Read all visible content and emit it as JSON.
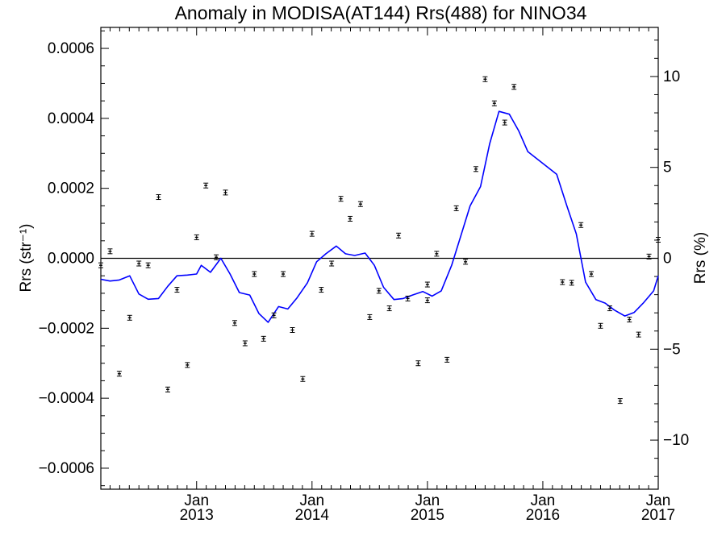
{
  "chart_data": {
    "type": "scatter",
    "title": "Anomaly in MODISA(AT144) Rrs(488) for NINO34",
    "ylabel_left": "Rrs (str⁻¹)",
    "ylabel_right": "Rrs (%)",
    "xlim": [
      2012.17,
      2017.0
    ],
    "ylim_left": [
      -0.00066,
      0.00066
    ],
    "ylim_right": [
      -12.7,
      12.7
    ],
    "zero_line": true,
    "x_ticks": [
      {
        "x": 2013.0,
        "month": "Jan",
        "year": "2013"
      },
      {
        "x": 2014.0,
        "month": "Jan",
        "year": "2014"
      },
      {
        "x": 2015.0,
        "month": "Jan",
        "year": "2015"
      },
      {
        "x": 2016.0,
        "month": "Jan",
        "year": "2016"
      },
      {
        "x": 2017.0,
        "month": "Jan",
        "year": "2017"
      }
    ],
    "y_ticks_left": [
      {
        "v": 0.0006,
        "label": "0.0006"
      },
      {
        "v": 0.0004,
        "label": "0.0004"
      },
      {
        "v": 0.0002,
        "label": "0.0002"
      },
      {
        "v": 0.0,
        "label": "0.0000"
      },
      {
        "v": -0.0002,
        "label": "−0.0002"
      },
      {
        "v": -0.0004,
        "label": "−0.0004"
      },
      {
        "v": -0.0006,
        "label": "−0.0006"
      }
    ],
    "y_ticks_right": [
      {
        "v": 10,
        "label": "10"
      },
      {
        "v": 5,
        "label": "5"
      },
      {
        "v": 0,
        "label": "0"
      },
      {
        "v": -5,
        "label": "−5"
      },
      {
        "v": -10,
        "label": "−10"
      }
    ],
    "series": [
      {
        "axis": "left",
        "style": "errorbar-points",
        "color": "#000000",
        "points": [
          {
            "x": 2012.17,
            "y": -2e-05
          },
          {
            "x": 2012.25,
            "y": 2e-05
          },
          {
            "x": 2012.33,
            "y": -0.00033
          },
          {
            "x": 2012.42,
            "y": -0.00017
          },
          {
            "x": 2012.5,
            "y": -1.5e-05
          },
          {
            "x": 2012.58,
            "y": -2e-05
          },
          {
            "x": 2012.67,
            "y": 0.000175
          },
          {
            "x": 2012.75,
            "y": -0.000375
          },
          {
            "x": 2012.83,
            "y": -9e-05
          },
          {
            "x": 2012.92,
            "y": -0.000305
          },
          {
            "x": 2013.0,
            "y": 6e-05
          },
          {
            "x": 2013.08,
            "y": 0.000208
          },
          {
            "x": 2013.17,
            "y": 3e-06
          },
          {
            "x": 2013.25,
            "y": 0.000188
          },
          {
            "x": 2013.33,
            "y": -0.000185
          },
          {
            "x": 2013.42,
            "y": -0.000243
          },
          {
            "x": 2013.5,
            "y": -4.5e-05
          },
          {
            "x": 2013.58,
            "y": -0.00023
          },
          {
            "x": 2013.67,
            "y": -0.000163
          },
          {
            "x": 2013.75,
            "y": -4.5e-05
          },
          {
            "x": 2013.83,
            "y": -0.000205
          },
          {
            "x": 2013.92,
            "y": -0.000345
          },
          {
            "x": 2014.0,
            "y": 7e-05
          },
          {
            "x": 2014.08,
            "y": -9e-05
          },
          {
            "x": 2014.17,
            "y": -1.5e-05
          },
          {
            "x": 2014.25,
            "y": 0.00017
          },
          {
            "x": 2014.33,
            "y": 0.000113
          },
          {
            "x": 2014.42,
            "y": 0.000155
          },
          {
            "x": 2014.5,
            "y": -0.000168
          },
          {
            "x": 2014.58,
            "y": -9.3e-05
          },
          {
            "x": 2014.67,
            "y": -0.000143
          },
          {
            "x": 2014.75,
            "y": 6.5e-05
          },
          {
            "x": 2014.83,
            "y": -0.000115
          },
          {
            "x": 2014.92,
            "y": -0.0003
          },
          {
            "x": 2015.0,
            "y": -7.5e-05
          },
          {
            "x": 2015.0,
            "y": -0.00012
          },
          {
            "x": 2015.08,
            "y": 1.3e-05
          },
          {
            "x": 2015.17,
            "y": -0.00029
          },
          {
            "x": 2015.25,
            "y": 0.000143
          },
          {
            "x": 2015.33,
            "y": -1e-05
          },
          {
            "x": 2015.42,
            "y": 0.000255
          },
          {
            "x": 2015.5,
            "y": 0.000512
          },
          {
            "x": 2015.58,
            "y": 0.000443
          },
          {
            "x": 2015.67,
            "y": 0.000388
          },
          {
            "x": 2015.75,
            "y": 0.00049
          },
          {
            "x": 2016.17,
            "y": -6.8e-05
          },
          {
            "x": 2016.25,
            "y": -7e-05
          },
          {
            "x": 2016.33,
            "y": 9.5e-05
          },
          {
            "x": 2016.42,
            "y": -4.5e-05
          },
          {
            "x": 2016.5,
            "y": -0.000193
          },
          {
            "x": 2016.58,
            "y": -0.000143
          },
          {
            "x": 2016.67,
            "y": -0.000408
          },
          {
            "x": 2016.75,
            "y": -0.000175
          },
          {
            "x": 2016.83,
            "y": -0.000218
          },
          {
            "x": 2016.92,
            "y": 5e-06
          },
          {
            "x": 2017.0,
            "y": 5.3e-05
          }
        ]
      },
      {
        "axis": "left",
        "style": "line",
        "color": "#0000ff",
        "points": [
          {
            "x": 2012.17,
            "y": -6e-05
          },
          {
            "x": 2012.25,
            "y": -6.5e-05
          },
          {
            "x": 2012.33,
            "y": -6.2e-05
          },
          {
            "x": 2012.42,
            "y": -5e-05
          },
          {
            "x": 2012.5,
            "y": -0.000102
          },
          {
            "x": 2012.58,
            "y": -0.000117
          },
          {
            "x": 2012.67,
            "y": -0.000115
          },
          {
            "x": 2012.75,
            "y": -8e-05
          },
          {
            "x": 2012.83,
            "y": -5e-05
          },
          {
            "x": 2012.92,
            "y": -4.8e-05
          },
          {
            "x": 2013.0,
            "y": -4.5e-05
          },
          {
            "x": 2013.04,
            "y": -2e-05
          },
          {
            "x": 2013.12,
            "y": -4e-05
          },
          {
            "x": 2013.21,
            "y": 0.0
          },
          {
            "x": 2013.29,
            "y": -4.5e-05
          },
          {
            "x": 2013.37,
            "y": -9.8e-05
          },
          {
            "x": 2013.46,
            "y": -0.000105
          },
          {
            "x": 2013.54,
            "y": -0.000158
          },
          {
            "x": 2013.62,
            "y": -0.000183
          },
          {
            "x": 2013.71,
            "y": -0.000138
          },
          {
            "x": 2013.79,
            "y": -0.000145
          },
          {
            "x": 2013.87,
            "y": -0.000113
          },
          {
            "x": 2013.96,
            "y": -7e-05
          },
          {
            "x": 2014.04,
            "y": -1e-05
          },
          {
            "x": 2014.12,
            "y": 1.3e-05
          },
          {
            "x": 2014.21,
            "y": 3.5e-05
          },
          {
            "x": 2014.29,
            "y": 1.3e-05
          },
          {
            "x": 2014.37,
            "y": 8e-06
          },
          {
            "x": 2014.46,
            "y": 1.5e-05
          },
          {
            "x": 2014.54,
            "y": -2e-05
          },
          {
            "x": 2014.62,
            "y": -8.3e-05
          },
          {
            "x": 2014.71,
            "y": -0.000118
          },
          {
            "x": 2014.79,
            "y": -0.000115
          },
          {
            "x": 2014.87,
            "y": -0.000105
          },
          {
            "x": 2014.96,
            "y": -9.5e-05
          },
          {
            "x": 2015.04,
            "y": -0.000108
          },
          {
            "x": 2015.12,
            "y": -9.3e-05
          },
          {
            "x": 2015.21,
            "y": -2e-05
          },
          {
            "x": 2015.29,
            "y": 6.5e-05
          },
          {
            "x": 2015.37,
            "y": 0.00015
          },
          {
            "x": 2015.46,
            "y": 0.000205
          },
          {
            "x": 2015.54,
            "y": 0.000328
          },
          {
            "x": 2015.62,
            "y": 0.00042
          },
          {
            "x": 2015.71,
            "y": 0.000412
          },
          {
            "x": 2015.79,
            "y": 0.000365
          },
          {
            "x": 2015.87,
            "y": 0.000305
          },
          {
            "x": 2016.12,
            "y": 0.00024
          },
          {
            "x": 2016.21,
            "y": 0.000148
          },
          {
            "x": 2016.29,
            "y": 7e-05
          },
          {
            "x": 2016.37,
            "y": -6.8e-05
          },
          {
            "x": 2016.46,
            "y": -0.000118
          },
          {
            "x": 2016.54,
            "y": -0.000128
          },
          {
            "x": 2016.62,
            "y": -0.000148
          },
          {
            "x": 2016.71,
            "y": -0.000165
          },
          {
            "x": 2016.79,
            "y": -0.000155
          },
          {
            "x": 2016.87,
            "y": -0.000128
          },
          {
            "x": 2016.96,
            "y": -9.3e-05
          },
          {
            "x": 2017.0,
            "y": -5e-05
          }
        ]
      }
    ]
  }
}
